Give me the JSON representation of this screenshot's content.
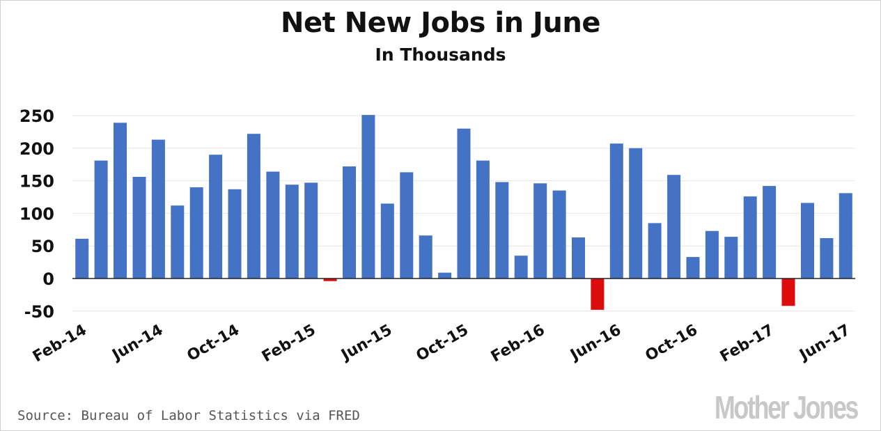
{
  "chart_data": {
    "type": "bar",
    "title": "Net New Jobs in June",
    "subtitle": "In Thousands",
    "xlabel": "",
    "ylabel": "",
    "ylim": [
      -50,
      250
    ],
    "yticks": [
      250,
      200,
      150,
      100,
      50,
      0,
      -50
    ],
    "grid": true,
    "categories": [
      "Feb-14",
      "Mar-14",
      "Apr-14",
      "May-14",
      "Jun-14",
      "Jul-14",
      "Aug-14",
      "Sep-14",
      "Oct-14",
      "Nov-14",
      "Dec-14",
      "Jan-15",
      "Feb-15",
      "Mar-15",
      "Apr-15",
      "May-15",
      "Jun-15",
      "Jul-15",
      "Aug-15",
      "Sep-15",
      "Oct-15",
      "Nov-15",
      "Dec-15",
      "Jan-16",
      "Feb-16",
      "Mar-16",
      "Apr-16",
      "May-16",
      "Jun-16",
      "Jul-16",
      "Aug-16",
      "Sep-16",
      "Oct-16",
      "Nov-16",
      "Dec-16",
      "Jan-17",
      "Feb-17",
      "Mar-17",
      "Apr-17",
      "May-17",
      "Jun-17"
    ],
    "x_tick_labels": [
      "Feb-14",
      "Jun-14",
      "Oct-14",
      "Feb-15",
      "Jun-15",
      "Oct-15",
      "Feb-16",
      "Jun-16",
      "Oct-16",
      "Feb-17",
      "Jun-17"
    ],
    "values": [
      61,
      181,
      239,
      156,
      213,
      112,
      140,
      190,
      137,
      222,
      164,
      144,
      147,
      -4,
      172,
      251,
      115,
      163,
      66,
      9,
      230,
      181,
      148,
      35,
      146,
      135,
      63,
      -48,
      207,
      200,
      85,
      159,
      33,
      73,
      64,
      126,
      142,
      -42,
      116,
      62,
      131
    ],
    "colors": {
      "positive": "#4472c4",
      "negative": "#dd0c0c"
    }
  },
  "source": "Source: Bureau of Labor Statistics via FRED",
  "logo_text": "Mother Jones"
}
